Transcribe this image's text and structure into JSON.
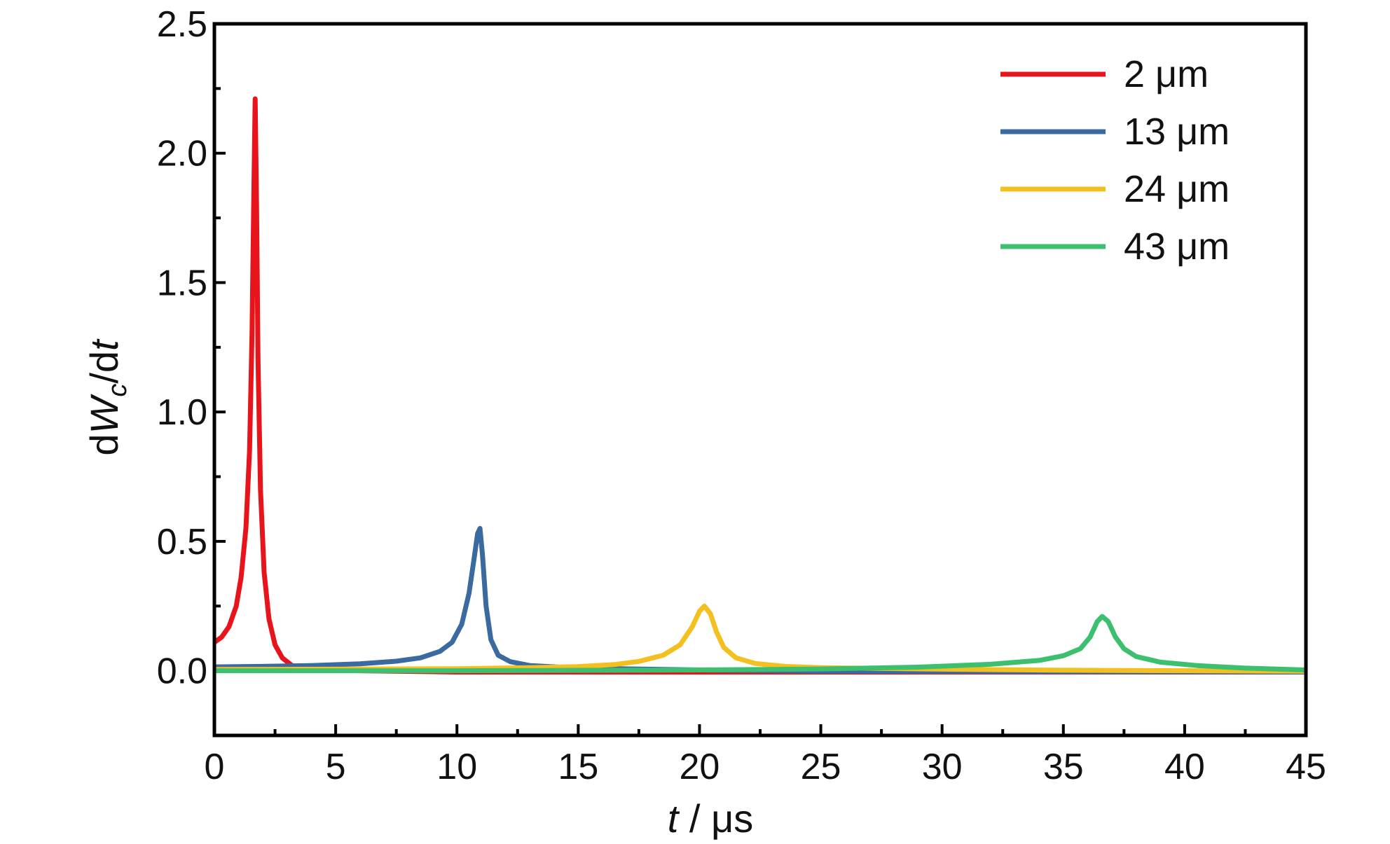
{
  "chart_data": {
    "type": "line",
    "xlabel": "t / μs",
    "ylabel": "dWc/dt",
    "xlabel_parts": {
      "t": "t",
      "unit": " / μs"
    },
    "ylabel_parts": {
      "d1": "d",
      "W": "W",
      "c": "c",
      "mid": "/d",
      "t": "t"
    },
    "xlim": [
      0,
      45
    ],
    "ylim": [
      -0.25,
      2.5
    ],
    "xticks": [
      0,
      5,
      10,
      15,
      20,
      25,
      30,
      35,
      40,
      45
    ],
    "xtick_labels": [
      "0",
      "5",
      "10",
      "15",
      "20",
      "25",
      "30",
      "35",
      "40",
      "45"
    ],
    "yticks": [
      0.0,
      0.5,
      1.0,
      1.5,
      2.0,
      2.5
    ],
    "ytick_labels": [
      "0.0",
      "0.5",
      "1.0",
      "1.5",
      "2.0",
      "2.5"
    ],
    "grid": false,
    "legend_position": "top-right",
    "series": [
      {
        "name": "2 μm",
        "color": "#e8141c",
        "points": [
          [
            0,
            0.11
          ],
          [
            0.3,
            0.13
          ],
          [
            0.6,
            0.17
          ],
          [
            0.9,
            0.25
          ],
          [
            1.1,
            0.36
          ],
          [
            1.3,
            0.55
          ],
          [
            1.45,
            0.85
          ],
          [
            1.55,
            1.3
          ],
          [
            1.62,
            1.8
          ],
          [
            1.68,
            2.21
          ],
          [
            1.74,
            1.8
          ],
          [
            1.8,
            1.2
          ],
          [
            1.9,
            0.7
          ],
          [
            2.05,
            0.38
          ],
          [
            2.25,
            0.2
          ],
          [
            2.5,
            0.1
          ],
          [
            2.8,
            0.05
          ],
          [
            3.2,
            0.02
          ],
          [
            4,
            0.005
          ],
          [
            6,
            0.0
          ],
          [
            10,
            -0.005
          ],
          [
            20,
            -0.005
          ],
          [
            45,
            -0.005
          ]
        ]
      },
      {
        "name": "13 μm",
        "color": "#3a6aa0",
        "points": [
          [
            0,
            0.015
          ],
          [
            2,
            0.017
          ],
          [
            4,
            0.02
          ],
          [
            6,
            0.027
          ],
          [
            7.5,
            0.037
          ],
          [
            8.5,
            0.05
          ],
          [
            9.3,
            0.075
          ],
          [
            9.8,
            0.11
          ],
          [
            10.2,
            0.18
          ],
          [
            10.5,
            0.3
          ],
          [
            10.7,
            0.43
          ],
          [
            10.85,
            0.53
          ],
          [
            10.95,
            0.55
          ],
          [
            11.05,
            0.45
          ],
          [
            11.2,
            0.25
          ],
          [
            11.4,
            0.12
          ],
          [
            11.7,
            0.06
          ],
          [
            12.2,
            0.035
          ],
          [
            13,
            0.02
          ],
          [
            15,
            0.01
          ],
          [
            20,
            0.003
          ],
          [
            25,
            -0.002
          ],
          [
            45,
            -0.005
          ]
        ]
      },
      {
        "name": "24 μm",
        "color": "#f4c020",
        "points": [
          [
            0,
            0.005
          ],
          [
            5,
            0.006
          ],
          [
            10,
            0.008
          ],
          [
            13,
            0.012
          ],
          [
            15,
            0.016
          ],
          [
            16.5,
            0.024
          ],
          [
            17.5,
            0.036
          ],
          [
            18.5,
            0.06
          ],
          [
            19.2,
            0.1
          ],
          [
            19.7,
            0.17
          ],
          [
            20.0,
            0.23
          ],
          [
            20.2,
            0.25
          ],
          [
            20.45,
            0.22
          ],
          [
            20.7,
            0.15
          ],
          [
            21,
            0.09
          ],
          [
            21.5,
            0.05
          ],
          [
            22.3,
            0.028
          ],
          [
            23.5,
            0.017
          ],
          [
            25,
            0.012
          ],
          [
            30,
            0.006
          ],
          [
            35,
            0.002
          ],
          [
            40,
            0.0
          ],
          [
            45,
            -0.002
          ]
        ]
      },
      {
        "name": "43 μm",
        "color": "#3cc070",
        "points": [
          [
            0,
            0.0
          ],
          [
            10,
            0.0
          ],
          [
            20,
            0.003
          ],
          [
            25,
            0.007
          ],
          [
            29,
            0.014
          ],
          [
            32,
            0.025
          ],
          [
            34,
            0.04
          ],
          [
            35,
            0.058
          ],
          [
            35.7,
            0.085
          ],
          [
            36.1,
            0.13
          ],
          [
            36.4,
            0.19
          ],
          [
            36.6,
            0.21
          ],
          [
            36.85,
            0.19
          ],
          [
            37.15,
            0.13
          ],
          [
            37.5,
            0.085
          ],
          [
            38,
            0.055
          ],
          [
            39,
            0.033
          ],
          [
            40.5,
            0.02
          ],
          [
            42.5,
            0.01
          ],
          [
            45,
            0.003
          ]
        ]
      }
    ]
  }
}
